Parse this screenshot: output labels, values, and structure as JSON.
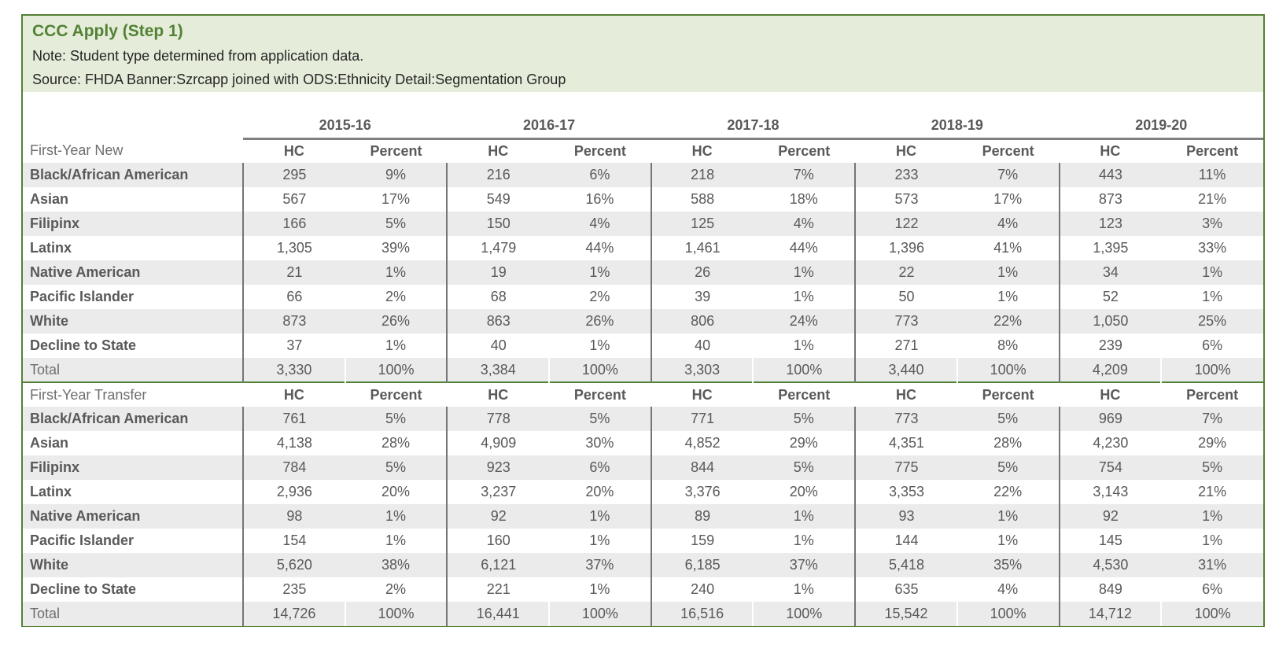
{
  "header": {
    "title": "CCC Apply (Step 1)",
    "note": "Note: Student type determined from application data.",
    "source": "Source: FHDA Banner:Szrcapp joined with ODS:Ethnicity Detail:Segmentation Group"
  },
  "chart_data": {
    "type": "table",
    "title": "CCC Apply (Step 1)",
    "years": [
      "2015-16",
      "2016-17",
      "2017-18",
      "2018-19",
      "2019-20"
    ],
    "measure_headers": [
      "HC",
      "Percent"
    ],
    "sections": [
      {
        "label": "First-Year New",
        "rows": [
          {
            "label": "Black/African American",
            "is_total": false,
            "values": [
              [
                "295",
                "9%"
              ],
              [
                "216",
                "6%"
              ],
              [
                "218",
                "7%"
              ],
              [
                "233",
                "7%"
              ],
              [
                "443",
                "11%"
              ]
            ]
          },
          {
            "label": "Asian",
            "is_total": false,
            "values": [
              [
                "567",
                "17%"
              ],
              [
                "549",
                "16%"
              ],
              [
                "588",
                "18%"
              ],
              [
                "573",
                "17%"
              ],
              [
                "873",
                "21%"
              ]
            ]
          },
          {
            "label": "Filipinx",
            "is_total": false,
            "values": [
              [
                "166",
                "5%"
              ],
              [
                "150",
                "4%"
              ],
              [
                "125",
                "4%"
              ],
              [
                "122",
                "4%"
              ],
              [
                "123",
                "3%"
              ]
            ]
          },
          {
            "label": "Latinx",
            "is_total": false,
            "values": [
              [
                "1,305",
                "39%"
              ],
              [
                "1,479",
                "44%"
              ],
              [
                "1,461",
                "44%"
              ],
              [
                "1,396",
                "41%"
              ],
              [
                "1,395",
                "33%"
              ]
            ]
          },
          {
            "label": "Native American",
            "is_total": false,
            "values": [
              [
                "21",
                "1%"
              ],
              [
                "19",
                "1%"
              ],
              [
                "26",
                "1%"
              ],
              [
                "22",
                "1%"
              ],
              [
                "34",
                "1%"
              ]
            ]
          },
          {
            "label": "Pacific Islander",
            "is_total": false,
            "values": [
              [
                "66",
                "2%"
              ],
              [
                "68",
                "2%"
              ],
              [
                "39",
                "1%"
              ],
              [
                "50",
                "1%"
              ],
              [
                "52",
                "1%"
              ]
            ]
          },
          {
            "label": "White",
            "is_total": false,
            "values": [
              [
                "873",
                "26%"
              ],
              [
                "863",
                "26%"
              ],
              [
                "806",
                "24%"
              ],
              [
                "773",
                "22%"
              ],
              [
                "1,050",
                "25%"
              ]
            ]
          },
          {
            "label": "Decline to State",
            "is_total": false,
            "values": [
              [
                "37",
                "1%"
              ],
              [
                "40",
                "1%"
              ],
              [
                "40",
                "1%"
              ],
              [
                "271",
                "8%"
              ],
              [
                "239",
                "6%"
              ]
            ]
          },
          {
            "label": "Total",
            "is_total": true,
            "values": [
              [
                "3,330",
                "100%"
              ],
              [
                "3,384",
                "100%"
              ],
              [
                "3,303",
                "100%"
              ],
              [
                "3,440",
                "100%"
              ],
              [
                "4,209",
                "100%"
              ]
            ]
          }
        ]
      },
      {
        "label": "First-Year Transfer",
        "rows": [
          {
            "label": "Black/African American",
            "is_total": false,
            "values": [
              [
                "761",
                "5%"
              ],
              [
                "778",
                "5%"
              ],
              [
                "771",
                "5%"
              ],
              [
                "773",
                "5%"
              ],
              [
                "969",
                "7%"
              ]
            ]
          },
          {
            "label": "Asian",
            "is_total": false,
            "values": [
              [
                "4,138",
                "28%"
              ],
              [
                "4,909",
                "30%"
              ],
              [
                "4,852",
                "29%"
              ],
              [
                "4,351",
                "28%"
              ],
              [
                "4,230",
                "29%"
              ]
            ]
          },
          {
            "label": "Filipinx",
            "is_total": false,
            "values": [
              [
                "784",
                "5%"
              ],
              [
                "923",
                "6%"
              ],
              [
                "844",
                "5%"
              ],
              [
                "775",
                "5%"
              ],
              [
                "754",
                "5%"
              ]
            ]
          },
          {
            "label": "Latinx",
            "is_total": false,
            "values": [
              [
                "2,936",
                "20%"
              ],
              [
                "3,237",
                "20%"
              ],
              [
                "3,376",
                "20%"
              ],
              [
                "3,353",
                "22%"
              ],
              [
                "3,143",
                "21%"
              ]
            ]
          },
          {
            "label": "Native American",
            "is_total": false,
            "values": [
              [
                "98",
                "1%"
              ],
              [
                "92",
                "1%"
              ],
              [
                "89",
                "1%"
              ],
              [
                "93",
                "1%"
              ],
              [
                "92",
                "1%"
              ]
            ]
          },
          {
            "label": "Pacific Islander",
            "is_total": false,
            "values": [
              [
                "154",
                "1%"
              ],
              [
                "160",
                "1%"
              ],
              [
                "159",
                "1%"
              ],
              [
                "144",
                "1%"
              ],
              [
                "145",
                "1%"
              ]
            ]
          },
          {
            "label": "White",
            "is_total": false,
            "values": [
              [
                "5,620",
                "38%"
              ],
              [
                "6,121",
                "37%"
              ],
              [
                "6,185",
                "37%"
              ],
              [
                "5,418",
                "35%"
              ],
              [
                "4,530",
                "31%"
              ]
            ]
          },
          {
            "label": "Decline to State",
            "is_total": false,
            "values": [
              [
                "235",
                "2%"
              ],
              [
                "221",
                "1%"
              ],
              [
                "240",
                "1%"
              ],
              [
                "635",
                "4%"
              ],
              [
                "849",
                "6%"
              ]
            ]
          },
          {
            "label": "Total",
            "is_total": true,
            "values": [
              [
                "14,726",
                "100%"
              ],
              [
                "16,441",
                "100%"
              ],
              [
                "16,516",
                "100%"
              ],
              [
                "15,542",
                "100%"
              ],
              [
                "14,712",
                "100%"
              ]
            ]
          }
        ]
      }
    ]
  },
  "colors": {
    "accent_green": "#538135",
    "banner_background": "#e5edda",
    "stripe_gray": "#ebebeb",
    "text_gray": "#595959",
    "muted_label_gray": "#6e6e6e",
    "year_underline_gray": "#808080",
    "group_separator_gray": "#757575"
  }
}
